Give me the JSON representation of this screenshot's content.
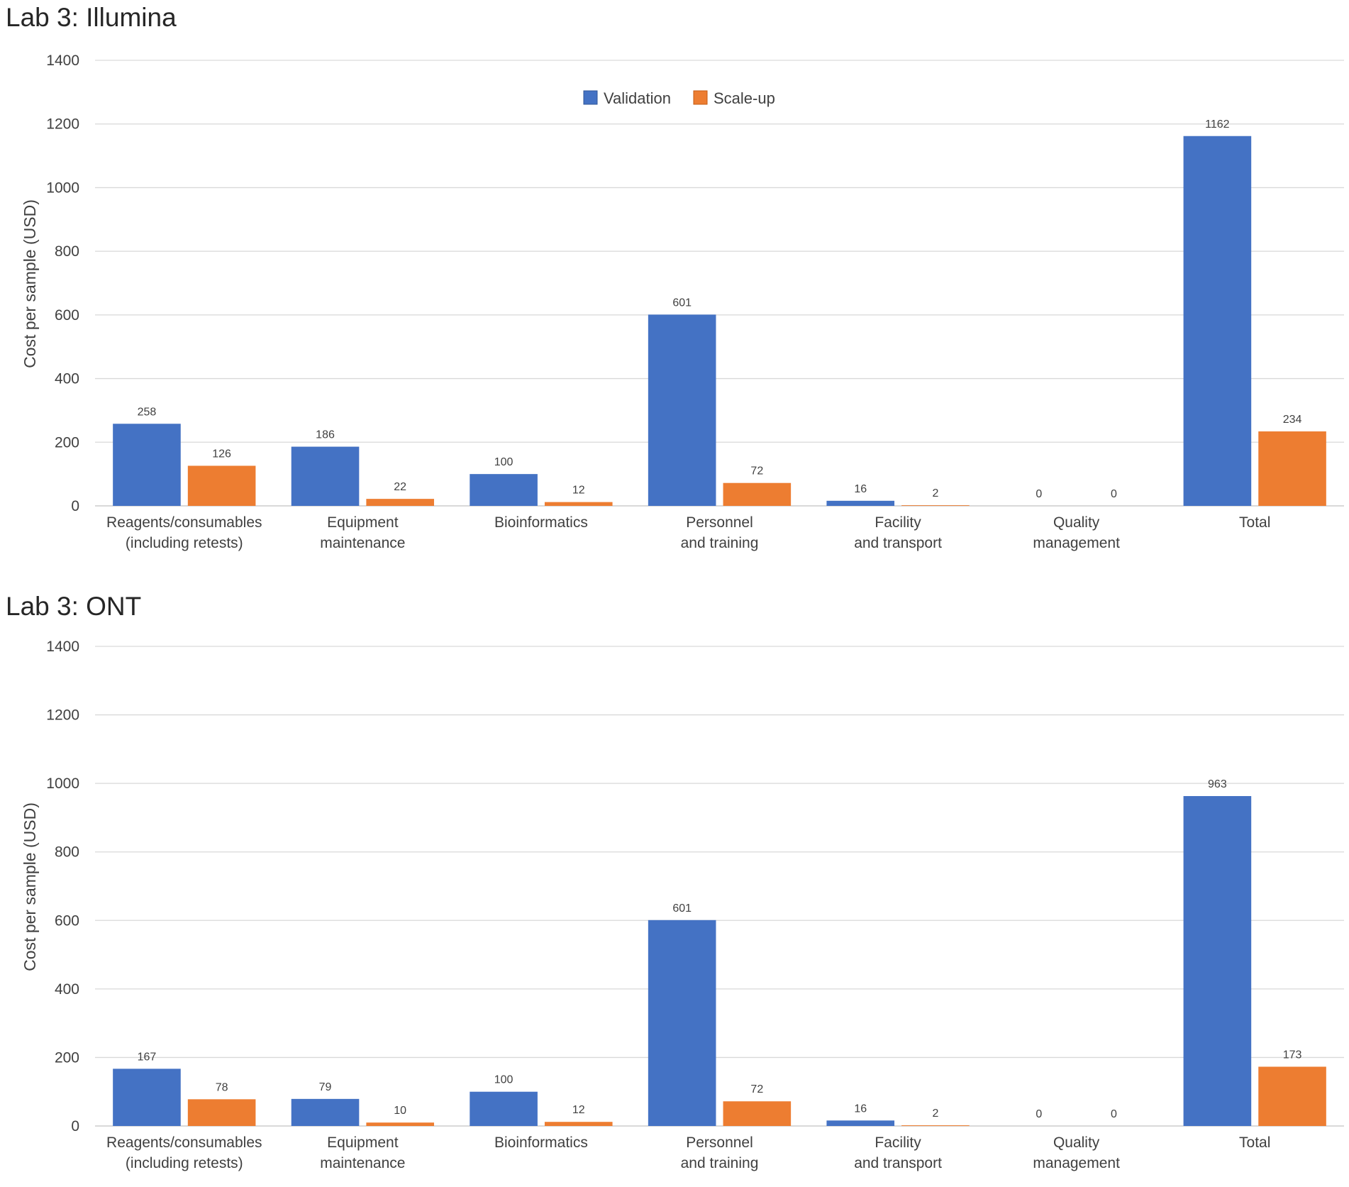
{
  "colors": {
    "validation": "#4472C4",
    "scaleup": "#ED7D31",
    "grid": "#D9D9D9",
    "text": "#404040"
  },
  "chart_data": [
    {
      "type": "bar",
      "title": "Lab 3: Illumina",
      "ylabel": "Cost per sample (USD)",
      "xlabel": "",
      "ylim": [
        0,
        1400
      ],
      "yticks": [
        "0",
        "200",
        "400",
        "600",
        "800",
        "1000",
        "1200",
        "1400"
      ],
      "grid": true,
      "legend_position": "top-center",
      "categories": [
        [
          "Reagents/consumables",
          "(including retests)"
        ],
        [
          "Equipment",
          "maintenance"
        ],
        [
          "Bioinformatics"
        ],
        [
          "Personnel",
          "and training"
        ],
        [
          "Facility",
          "and transport"
        ],
        [
          "Quality",
          "management"
        ],
        [
          "Total"
        ]
      ],
      "series": [
        {
          "name": "Validation",
          "values": [
            258,
            186,
            100,
            601,
            16,
            0,
            1162
          ]
        },
        {
          "name": "Scale-up",
          "values": [
            126,
            22,
            12,
            72,
            2,
            0,
            234
          ]
        }
      ]
    },
    {
      "type": "bar",
      "title": "Lab 3: ONT",
      "ylabel": "Cost per sample (USD)",
      "xlabel": "",
      "ylim": [
        0,
        1400
      ],
      "yticks": [
        "0",
        "200",
        "400",
        "600",
        "800",
        "1000",
        "1200",
        "1400"
      ],
      "grid": true,
      "legend_position": "none",
      "categories": [
        [
          "Reagents/consumables",
          "(including retests)"
        ],
        [
          "Equipment",
          "maintenance"
        ],
        [
          "Bioinformatics"
        ],
        [
          "Personnel",
          "and training"
        ],
        [
          "Facility",
          "and transport"
        ],
        [
          "Quality",
          "management"
        ],
        [
          "Total"
        ]
      ],
      "series": [
        {
          "name": "Validation",
          "values": [
            167,
            79,
            100,
            601,
            16,
            0,
            963
          ]
        },
        {
          "name": "Scale-up",
          "values": [
            78,
            10,
            12,
            72,
            2,
            0,
            173
          ]
        }
      ]
    }
  ]
}
